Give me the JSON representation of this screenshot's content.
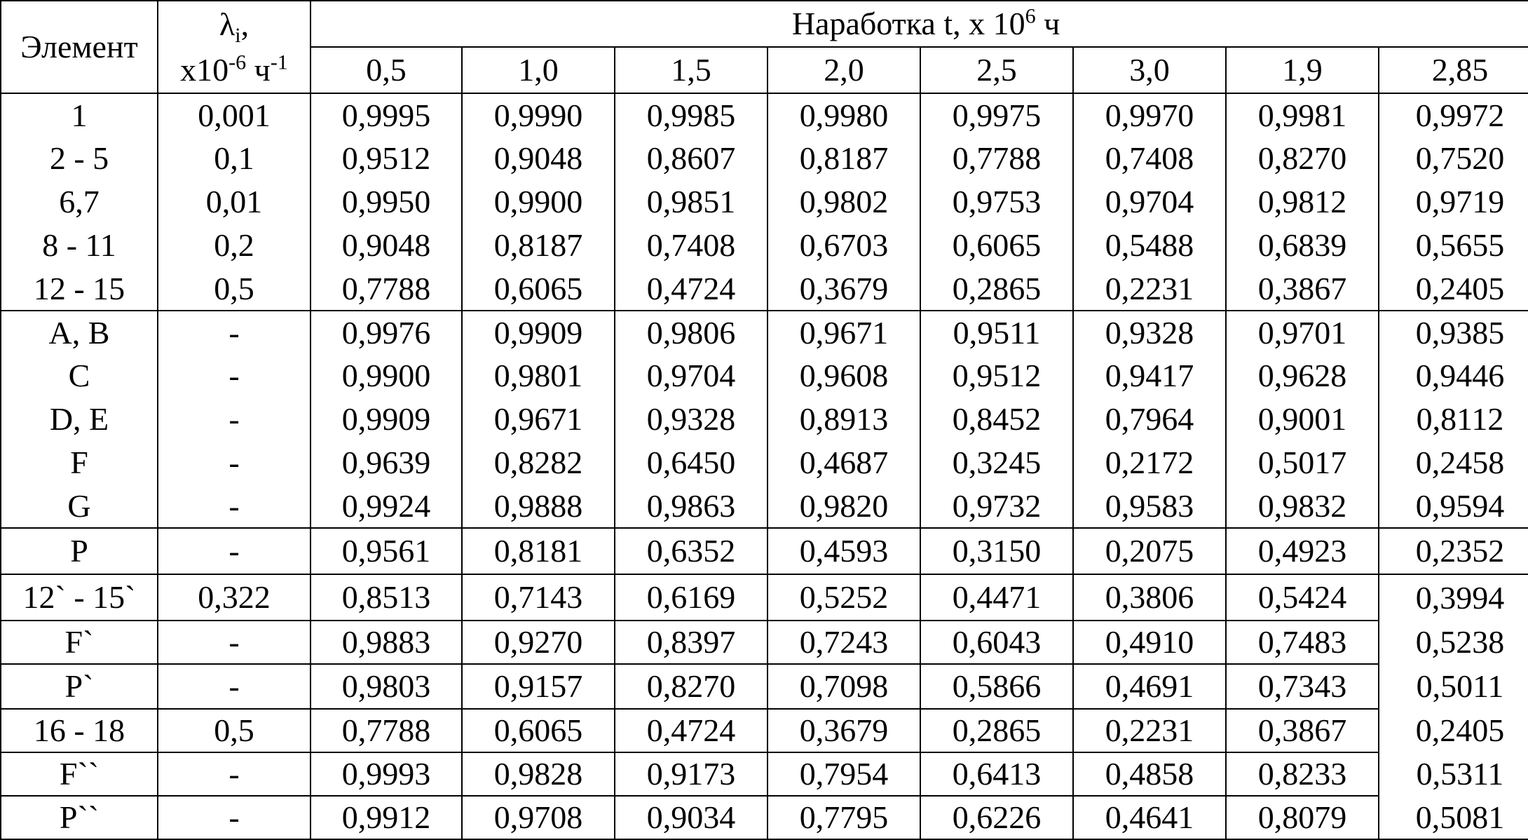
{
  "header": {
    "element_label": "Элемент",
    "lambda_symbol": "λ",
    "lambda_sub": "i",
    "lambda_comma": ",",
    "lambda_unit_prefix": "x10",
    "lambda_unit_exp": "-6",
    "lambda_unit_h": " ч",
    "lambda_unit_exp2": "-1",
    "runtime_label": "Наработка t, x 10",
    "runtime_exp": "6",
    "runtime_unit": " ч"
  },
  "times": [
    "0,5",
    "1,0",
    "1,5",
    "2,0",
    "2,5",
    "3,0",
    "1,9",
    "2,85"
  ],
  "rows": [
    {
      "el": "1",
      "lam": "0,001",
      "v": [
        "0,9995",
        "0,9990",
        "0,9985",
        "0,9980",
        "0,9975",
        "0,9970",
        "0,9981",
        "0,9972"
      ]
    },
    {
      "el": "2 - 5",
      "lam": "0,1",
      "v": [
        "0,9512",
        "0,9048",
        "0,8607",
        "0,8187",
        "0,7788",
        "0,7408",
        "0,8270",
        "0,7520"
      ]
    },
    {
      "el": "6,7",
      "lam": "0,01",
      "v": [
        "0,9950",
        "0,9900",
        "0,9851",
        "0,9802",
        "0,9753",
        "0,9704",
        "0,9812",
        "0,9719"
      ]
    },
    {
      "el": "8 - 11",
      "lam": "0,2",
      "v": [
        "0,9048",
        "0,8187",
        "0,7408",
        "0,6703",
        "0,6065",
        "0,5488",
        "0,6839",
        "0,5655"
      ]
    },
    {
      "el": "12 - 15",
      "lam": "0,5",
      "v": [
        "0,7788",
        "0,6065",
        "0,4724",
        "0,3679",
        "0,2865",
        "0,2231",
        "0,3867",
        "0,2405"
      ]
    },
    {
      "el": "A, B",
      "lam": "-",
      "v": [
        "0,9976",
        "0,9909",
        "0,9806",
        "0,9671",
        "0,9511",
        "0,9328",
        "0,9701",
        "0,9385"
      ]
    },
    {
      "el": "C",
      "lam": "-",
      "v": [
        "0,9900",
        "0,9801",
        "0,9704",
        "0,9608",
        "0,9512",
        "0,9417",
        "0,9628",
        "0,9446"
      ]
    },
    {
      "el": "D, E",
      "lam": "-",
      "v": [
        "0,9909",
        "0,9671",
        "0,9328",
        "0,8913",
        "0,8452",
        "0,7964",
        "0,9001",
        "0,8112"
      ]
    },
    {
      "el": "F",
      "lam": "-",
      "v": [
        "0,9639",
        "0,8282",
        "0,6450",
        "0,4687",
        "0,3245",
        "0,2172",
        "0,5017",
        "0,2458"
      ]
    },
    {
      "el": "G",
      "lam": "-",
      "v": [
        "0,9924",
        "0,9888",
        "0,9863",
        "0,9820",
        "0,9732",
        "0,9583",
        "0,9832",
        "0,9594"
      ]
    },
    {
      "el": "P",
      "lam": "-",
      "v": [
        "0,9561",
        "0,8181",
        "0,6352",
        "0,4593",
        "0,3150",
        "0,2075",
        "0,4923",
        "0,2352"
      ]
    },
    {
      "el": "12` - 15`",
      "lam": "0,322",
      "v": [
        "0,8513",
        "0,7143",
        "0,6169",
        "0,5252",
        "0,4471",
        "0,3806",
        "0,5424",
        "0,3994"
      ]
    },
    {
      "el": "F`",
      "lam": "-",
      "v": [
        "0,9883",
        "0,9270",
        "0,8397",
        "0,7243",
        "0,6043",
        "0,4910",
        "0,7483",
        "0,5238"
      ]
    },
    {
      "el": "P`",
      "lam": "-",
      "v": [
        "0,9803",
        "0,9157",
        "0,8270",
        "0,7098",
        "0,5866",
        "0,4691",
        "0,7343",
        "0,5011"
      ]
    },
    {
      "el": "16 - 18",
      "lam": "0,5",
      "v": [
        "0,7788",
        "0,6065",
        "0,4724",
        "0,3679",
        "0,2865",
        "0,2231",
        "0,3867",
        "0,2405"
      ]
    },
    {
      "el": "F``",
      "lam": "-",
      "v": [
        "0,9993",
        "0,9828",
        "0,9173",
        "0,7954",
        "0,6413",
        "0,4858",
        "0,8233",
        "0,5311"
      ]
    },
    {
      "el": "P``",
      "lam": "-",
      "v": [
        "0,9912",
        "0,9708",
        "0,9034",
        "0,7795",
        "0,6226",
        "0,4641",
        "0,8079",
        "0,5081"
      ]
    }
  ]
}
